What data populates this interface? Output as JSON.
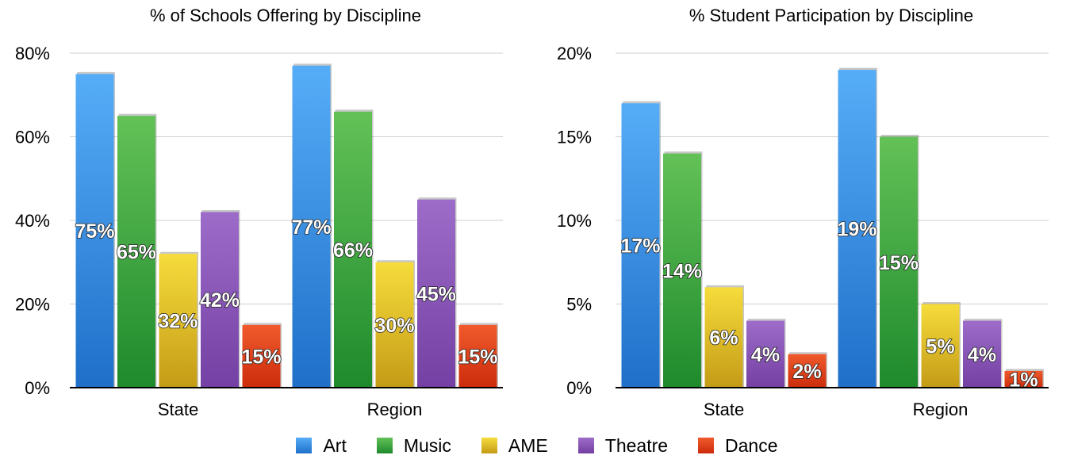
{
  "chart_data": [
    {
      "type": "bar",
      "title": "% of Schools Offering by Discipline",
      "categories": [
        "State",
        "Region"
      ],
      "series": [
        {
          "name": "Art",
          "values": [
            75,
            77
          ],
          "labels": [
            "75%",
            "77%"
          ]
        },
        {
          "name": "Music",
          "values": [
            65,
            66
          ],
          "labels": [
            "65%",
            "66%"
          ]
        },
        {
          "name": "AME",
          "values": [
            32,
            30
          ],
          "labels": [
            "32%",
            "30%"
          ]
        },
        {
          "name": "Theatre",
          "values": [
            42,
            45
          ],
          "labels": [
            "42%",
            "45%"
          ]
        },
        {
          "name": "Dance",
          "values": [
            15,
            15
          ],
          "labels": [
            "15%",
            "15%"
          ]
        }
      ],
      "ylim": [
        0,
        80
      ],
      "yticks": [
        0,
        20,
        40,
        60,
        80
      ],
      "ytick_labels": [
        "0%",
        "20%",
        "40%",
        "60%",
        "80%"
      ],
      "grid": true
    },
    {
      "type": "bar",
      "title": "% Student Participation by Discipline",
      "categories": [
        "State",
        "Region"
      ],
      "series": [
        {
          "name": "Art",
          "values": [
            17,
            19
          ],
          "labels": [
            "17%",
            "19%"
          ]
        },
        {
          "name": "Music",
          "values": [
            14,
            15
          ],
          "labels": [
            "14%",
            "15%"
          ]
        },
        {
          "name": "AME",
          "values": [
            6,
            5
          ],
          "labels": [
            "6%",
            "5%"
          ]
        },
        {
          "name": "Theatre",
          "values": [
            4,
            4
          ],
          "labels": [
            "4%",
            "4%"
          ]
        },
        {
          "name": "Dance",
          "values": [
            2,
            1
          ],
          "labels": [
            "2%",
            "1%"
          ]
        }
      ],
      "ylim": [
        0,
        20
      ],
      "yticks": [
        0,
        5,
        10,
        15,
        20
      ],
      "ytick_labels": [
        "0%",
        "5%",
        "10%",
        "15%",
        "20%"
      ],
      "grid": true
    }
  ],
  "legend": {
    "position": "bottom-center",
    "items": [
      {
        "label": "Art",
        "color": "#3a8fe6"
      },
      {
        "label": "Music",
        "color": "#35a83a"
      },
      {
        "label": "AME",
        "color": "#e9c419"
      },
      {
        "label": "Theatre",
        "color": "#8a55b8"
      },
      {
        "label": "Dance",
        "color": "#e03c14"
      }
    ]
  },
  "colors": {
    "Art": [
      "#56adf7",
      "#1f6fc9"
    ],
    "Music": [
      "#63c157",
      "#1e8a2c"
    ],
    "AME": [
      "#f6dc3c",
      "#c49b16"
    ],
    "Theatre": [
      "#9d6cc9",
      "#7440a3"
    ],
    "Dance": [
      "#f05a2c",
      "#cc2c0c"
    ]
  }
}
